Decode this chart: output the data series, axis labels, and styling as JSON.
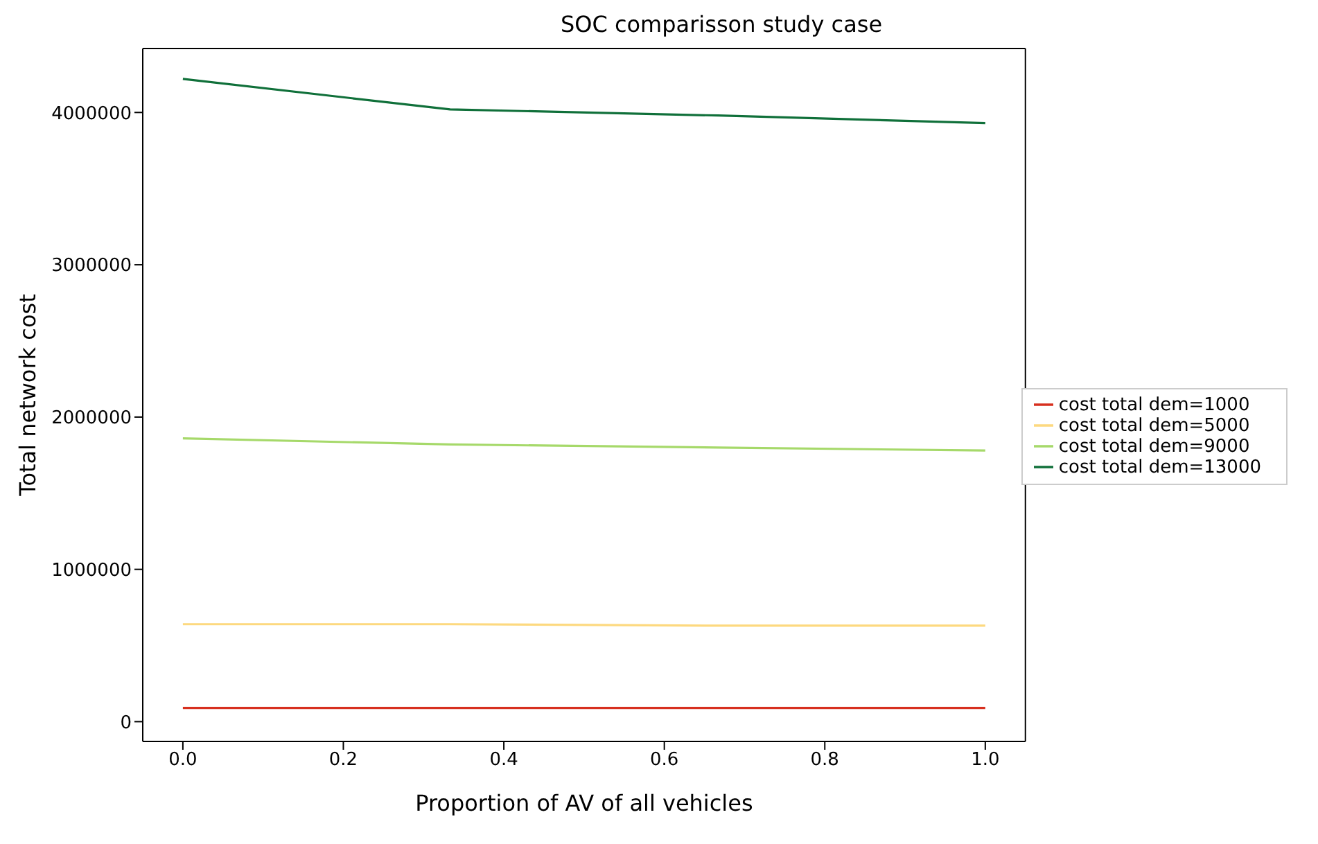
{
  "chart_data": {
    "type": "line",
    "title": "SOC comparisson study case",
    "xlabel": "Proportion of AV of all vehicles",
    "ylabel": "Total network cost",
    "x": [
      0,
      0.333,
      0.667,
      1
    ],
    "series": [
      {
        "name": "cost total dem=1000",
        "color": "#d7301f",
        "values": [
          90000,
          90000,
          90000,
          90000
        ]
      },
      {
        "name": "cost total dem=5000",
        "color": "#fdd97f",
        "values": [
          640000,
          640000,
          630000,
          630000
        ]
      },
      {
        "name": "cost total dem=9000",
        "color": "#a6d96a",
        "values": [
          1860000,
          1820000,
          1800000,
          1780000
        ]
      },
      {
        "name": "cost total dem=13000",
        "color": "#10703a",
        "values": [
          4220000,
          4020000,
          3980000,
          3930000
        ]
      }
    ],
    "xlim": [
      -0.05,
      1.05
    ],
    "ylim": [
      -130000,
      4420000
    ],
    "xticks": [
      {
        "value": 0,
        "label": "0.0"
      },
      {
        "value": 0.2,
        "label": "0.2"
      },
      {
        "value": 0.4,
        "label": "0.4"
      },
      {
        "value": 0.6,
        "label": "0.6"
      },
      {
        "value": 0.8,
        "label": "0.8"
      },
      {
        "value": 1,
        "label": "1.0"
      }
    ],
    "yticks": [
      0,
      1000000,
      2000000,
      3000000,
      4000000
    ],
    "grid": false,
    "legend": "right",
    "marker": "none",
    "line_style": "solid"
  }
}
